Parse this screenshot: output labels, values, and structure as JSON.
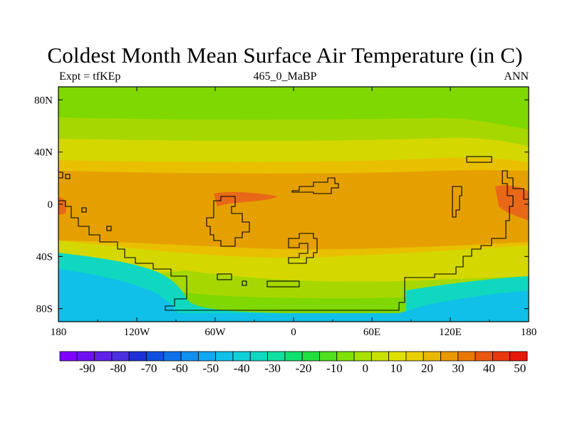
{
  "title": "Coldest Month Mean Surface Air Temperature (in C)",
  "subtitle_left": "Expt = tfKEp",
  "subtitle_center": "465_0_MaBP",
  "subtitle_right": "ANN",
  "map": {
    "projection": "cylindrical equidistant",
    "lon_range": [
      -180,
      180
    ],
    "lat_range": [
      -90,
      90
    ],
    "x_ticks": [
      {
        "lon": -180,
        "label": "180"
      },
      {
        "lon": -120,
        "label": "120W"
      },
      {
        "lon": -60,
        "label": "60W"
      },
      {
        "lon": 0,
        "label": "0"
      },
      {
        "lon": 60,
        "label": "60E"
      },
      {
        "lon": 120,
        "label": "120E"
      },
      {
        "lon": 180,
        "label": "180"
      }
    ],
    "y_ticks": [
      {
        "lat": 80,
        "label": "80N"
      },
      {
        "lat": 40,
        "label": "40N"
      },
      {
        "lat": 0,
        "label": "0"
      },
      {
        "lat": -40,
        "label": "40S"
      },
      {
        "lat": -80,
        "label": "80S"
      }
    ],
    "field": "coldest month mean surface air temperature",
    "units": "C"
  },
  "colorbar": {
    "labels": [
      "-90",
      "-80",
      "-70",
      "-60",
      "-50",
      "-40",
      "-30",
      "-20",
      "-10",
      "0",
      "10",
      "20",
      "30",
      "40",
      "50"
    ],
    "colors": [
      "#7f00ff",
      "#6f10f0",
      "#5f20e8",
      "#4a30e0",
      "#2030d8",
      "#1050e0",
      "#1070e8",
      "#1090f0",
      "#10a8f0",
      "#10c0e8",
      "#10d0d8",
      "#10d8c0",
      "#10e0a0",
      "#10e070",
      "#20e040",
      "#50e020",
      "#80e000",
      "#a8e000",
      "#c8e000",
      "#e0e000",
      "#e8d000",
      "#e8b800",
      "#e89800",
      "#e87800",
      "#e85810",
      "#e83810",
      "#e81808"
    ]
  },
  "colors": {
    "polar_north": "#7fd800",
    "subpolar": "#a6d800",
    "midlat": "#d4d800",
    "subtropic": "#e8c000",
    "tropic": "#e5a000",
    "hot": "#e86818",
    "antarctic": "#10c0e8",
    "antarctic_edge": "#10d8c0",
    "coast": "#000000"
  }
}
